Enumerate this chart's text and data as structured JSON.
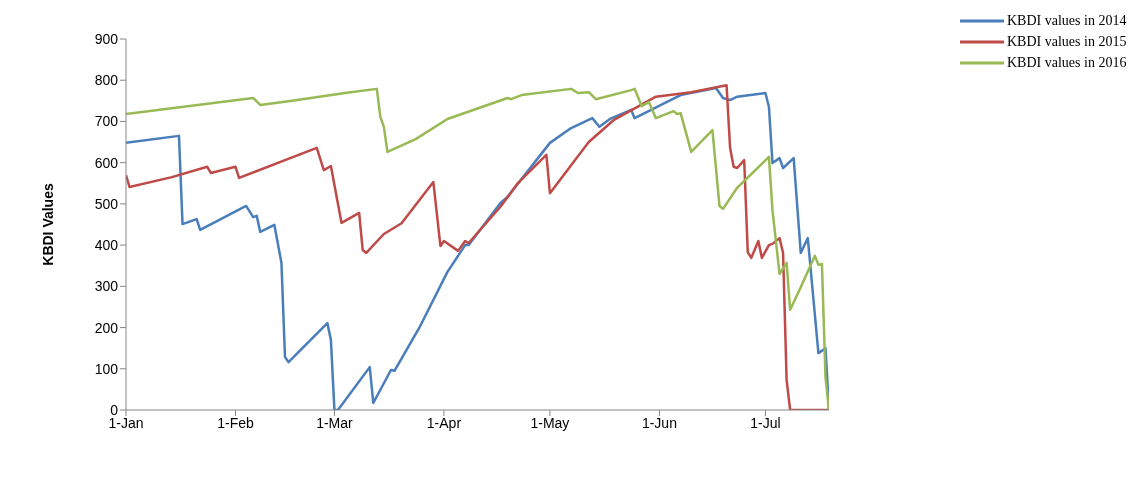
{
  "chart_data": {
    "type": "line",
    "ylabel": "KBDI Values",
    "xlim": [
      "--01-01",
      "--07-19"
    ],
    "xticks": [
      {
        "value": "--01-01",
        "label": "1-Jan"
      },
      {
        "value": "--02-01",
        "label": "1-Feb"
      },
      {
        "value": "--03-01",
        "label": "1-Mar"
      },
      {
        "value": "--04-01",
        "label": "1-Apr"
      },
      {
        "value": "--05-01",
        "label": "1-May"
      },
      {
        "value": "--06-01",
        "label": "1-Jun"
      },
      {
        "value": "--07-01",
        "label": "1-Jul"
      }
    ],
    "ylim": [
      0,
      900
    ],
    "yticks": [
      0,
      100,
      200,
      300,
      400,
      500,
      600,
      700,
      800,
      900
    ],
    "grid": false,
    "legend": "top right",
    "marker": "none",
    "line_style": "solid",
    "series": [
      {
        "name": "KBDI values in 2014",
        "color": "#4a7ebb",
        "x": [
          "--01-01",
          "--01-16",
          "--01-17",
          "--01-21",
          "--01-22",
          "--02-04",
          "--02-06",
          "--02-07",
          "--02-08",
          "--02-12",
          "--02-14",
          "--02-15",
          "--02-16",
          "--02-27",
          "--02-28",
          "--03-01",
          "--03-02",
          "--03-11",
          "--03-12",
          "--03-17",
          "--03-18",
          "--03-25",
          "--04-02",
          "--04-07",
          "--04-08",
          "--04-17",
          "--04-19",
          "--05-01",
          "--05-07",
          "--05-13",
          "--05-15",
          "--05-18",
          "--05-24",
          "--05-25",
          "--06-03",
          "--06-07",
          "--06-17",
          "--06-19",
          "--06-21",
          "--06-23",
          "--07-01",
          "--07-02",
          "--07-03",
          "--07-05",
          "--07-06",
          "--07-09",
          "--07-11",
          "--07-13",
          "--07-16",
          "--07-18",
          "--07-19"
        ],
        "values": [
          648,
          665,
          451,
          463,
          437,
          495,
          468,
          471,
          432,
          449,
          357,
          129,
          116,
          211,
          170,
          0,
          0,
          104,
          17,
          97,
          95,
          199,
          335,
          400,
          400,
          502,
          517,
          648,
          684,
          708,
          687,
          706,
          728,
          708,
          747,
          764,
          781,
          757,
          752,
          760,
          769,
          735,
          599,
          611,
          587,
          611,
          381,
          417,
          138,
          150,
          0
        ]
      },
      {
        "name": "KBDI values in 2015",
        "color": "#be4b48",
        "x": [
          "--01-01",
          "--01-02",
          "--01-14",
          "--01-24",
          "--01-25",
          "--02-01",
          "--02-02",
          "--02-24",
          "--02-26",
          "--02-28",
          "--03-01",
          "--03-03",
          "--03-08",
          "--03-09",
          "--03-10",
          "--03-15",
          "--03-20",
          "--03-29",
          "--03-31",
          "--04-01",
          "--04-05",
          "--04-07",
          "--04-08",
          "--04-17",
          "--04-22",
          "--04-30",
          "--05-01",
          "--05-07",
          "--05-12",
          "--05-19",
          "--05-31",
          "--06-10",
          "--06-20",
          "--06-21",
          "--06-22",
          "--06-23",
          "--06-25",
          "--06-26",
          "--06-27",
          "--06-29",
          "--06-30",
          "--07-02",
          "--07-03",
          "--07-05",
          "--07-06",
          "--07-07",
          "--07-08",
          "--07-19"
        ],
        "values": [
          570,
          541,
          565,
          590,
          575,
          590,
          563,
          636,
          582,
          592,
          546,
          454,
          478,
          388,
          381,
          427,
          453,
          553,
          398,
          410,
          386,
          410,
          405,
          493,
          551,
          619,
          526,
          594,
          650,
          703,
          760,
          771,
          788,
          636,
          590,
          587,
          606,
          383,
          369,
          410,
          369,
          400,
          403,
          417,
          381,
          73,
          0,
          0
        ]
      },
      {
        "name": "KBDI values in 2016",
        "color": "#98b954",
        "x": [
          "--01-01",
          "--02-06",
          "--02-08",
          "--02-17",
          "--03-04",
          "--03-13",
          "--03-14",
          "--03-15",
          "--03-16",
          "--03-24",
          "--04-02",
          "--04-19",
          "--04-20",
          "--04-23",
          "--05-07",
          "--05-09",
          "--05-12",
          "--05-14",
          "--05-24",
          "--05-25",
          "--05-27",
          "--05-29",
          "--05-31",
          "--06-05",
          "--06-06",
          "--06-07",
          "--06-10",
          "--06-16",
          "--06-18",
          "--06-19",
          "--06-23",
          "--07-02",
          "--07-03",
          "--07-05",
          "--07-07",
          "--07-08",
          "--07-11",
          "--07-15",
          "--07-16",
          "--07-17",
          "--07-18",
          "--07-19"
        ],
        "values": [
          718,
          757,
          740,
          750,
          769,
          779,
          711,
          687,
          626,
          657,
          706,
          757,
          754,
          764,
          779,
          769,
          771,
          754,
          776,
          779,
          737,
          747,
          708,
          725,
          718,
          720,
          626,
          679,
          495,
          488,
          539,
          614,
          485,
          330,
          357,
          243,
          298,
          374,
          352,
          354,
          80,
          0
        ]
      }
    ]
  }
}
